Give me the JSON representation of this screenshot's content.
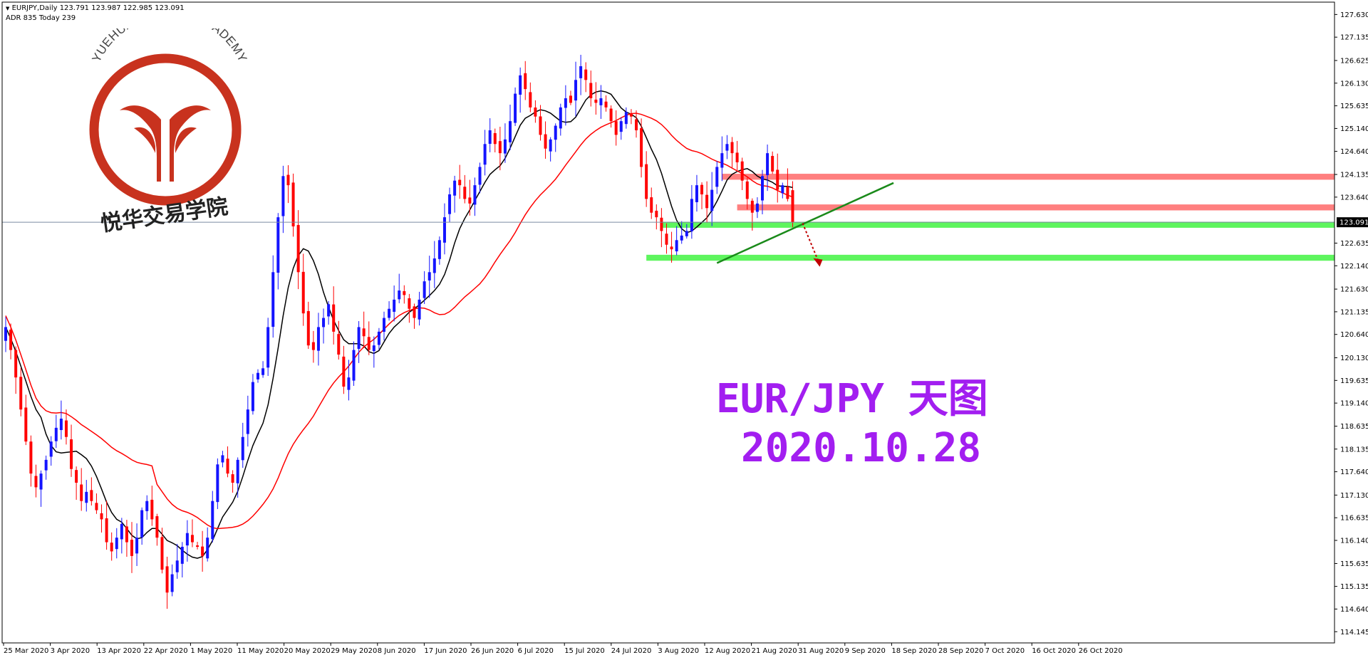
{
  "header": {
    "symbol_line": "EURJPY,Daily  123.791 123.987 122.985 123.091",
    "adr_line": "ADR 835  Today 239"
  },
  "logo": {
    "arc_text": "YUEHUA TRADING ACADEMY",
    "cn_text": "悦华交易学院",
    "color": "#c8321e"
  },
  "annotation": {
    "title": "EUR/JPY 天图",
    "date": "2020.10.28",
    "color": "#a21ef0"
  },
  "chart_data": {
    "type": "candlestick",
    "symbol": "EURJPY",
    "timeframe": "Daily",
    "ohlc_current": {
      "open": 123.791,
      "high": 123.987,
      "low": 122.985,
      "close": 123.091
    },
    "current_price_label": "123.091",
    "ylim": [
      113.9,
      127.9
    ],
    "y_ticks": [
      "127.630",
      "127.135",
      "126.625",
      "126.130",
      "125.635",
      "125.140",
      "124.640",
      "124.135",
      "123.640",
      "122.635",
      "122.140",
      "121.630",
      "121.135",
      "120.640",
      "120.130",
      "119.635",
      "119.140",
      "118.635",
      "118.135",
      "117.640",
      "117.130",
      "116.635",
      "116.140",
      "115.635",
      "115.135",
      "114.640",
      "114.145"
    ],
    "x_labels": [
      "25 Mar 2020",
      "3 Apr 2020",
      "13 Apr 2020",
      "22 Apr 2020",
      "1 May 2020",
      "11 May 2020",
      "20 May 2020",
      "29 May 2020",
      "8 Jun 2020",
      "17 Jun 2020",
      "26 Jun 2020",
      "6 Jul 2020",
      "15 Jul 2020",
      "24 Jul 2020",
      "3 Aug 2020",
      "12 Aug 2020",
      "21 Aug 2020",
      "31 Aug 2020",
      "9 Sep 2020",
      "18 Sep 2020",
      "28 Sep 2020",
      "7 Oct 2020",
      "16 Oct 2020",
      "26 Oct 2020"
    ],
    "up_color": "#1414ff",
    "down_color": "#ff0000",
    "closes": [
      120.8,
      120.3,
      119.7,
      119.0,
      118.3,
      117.6,
      117.3,
      117.6,
      117.9,
      118.3,
      118.6,
      118.8,
      118.4,
      117.7,
      117.4,
      117.0,
      117.2,
      117.0,
      116.8,
      116.6,
      116.1,
      115.9,
      116.2,
      116.5,
      116.1,
      115.8,
      116.2,
      116.8,
      117.0,
      116.6,
      116.2,
      115.5,
      115.0,
      115.4,
      115.7,
      116.0,
      116.3,
      116.1,
      116.0,
      115.8,
      116.2,
      117.0,
      117.8,
      118.0,
      117.6,
      117.4,
      117.9,
      118.4,
      119.0,
      119.6,
      119.8,
      119.9,
      120.8,
      122.0,
      123.2,
      124.1,
      123.9,
      123.0,
      122.0,
      121.1,
      120.4,
      120.3,
      120.8,
      121.0,
      121.3,
      120.7,
      120.2,
      119.5,
      119.7,
      120.3,
      120.8,
      120.6,
      120.3,
      120.4,
      120.7,
      121.0,
      121.2,
      121.4,
      121.6,
      121.5,
      121.2,
      121.0,
      121.4,
      121.8,
      122.0,
      122.3,
      122.7,
      123.2,
      123.7,
      124.0,
      123.9,
      123.6,
      123.5,
      123.9,
      124.3,
      124.8,
      125.1,
      124.8,
      124.6,
      124.9,
      125.3,
      125.9,
      126.3,
      126.0,
      125.6,
      125.4,
      125.0,
      124.7,
      124.9,
      125.2,
      125.6,
      125.8,
      125.7,
      126.2,
      126.5,
      126.2,
      125.8,
      125.7,
      125.8,
      125.6,
      125.3,
      125.0,
      125.3,
      125.5,
      125.4,
      125.1,
      124.3,
      123.6,
      123.3,
      123.2,
      122.9,
      122.6,
      122.5,
      122.7,
      122.8,
      122.9,
      123.6,
      123.9,
      123.7,
      123.4,
      123.8,
      124.3,
      124.6,
      124.8,
      124.6,
      124.4,
      124.0,
      123.6,
      123.3,
      123.5,
      124.1,
      124.6,
      124.2,
      123.8,
      123.9,
      123.6,
      123.091
    ],
    "series": [
      {
        "name": "",
        "color": "#000000",
        "type": "ma-fast"
      },
      {
        "name": "",
        "color": "#ff0000",
        "type": "ma-slow"
      }
    ],
    "zones": [
      {
        "kind": "resistance",
        "color": "#ff7f7f",
        "from": 124.02,
        "to": 124.15
      },
      {
        "kind": "resistance",
        "color": "#ff7f7f",
        "from": 123.35,
        "to": 123.48
      },
      {
        "kind": "support",
        "color": "#5ef55e",
        "from": 122.97,
        "to": 123.1
      },
      {
        "kind": "support",
        "color": "#5ef55e",
        "from": 122.25,
        "to": 122.38
      }
    ],
    "trendline": {
      "color": "#1a8a1a",
      "from": 122.2,
      "to": 123.95
    },
    "projection_arrow": {
      "color": "#c00000",
      "from": 123.07,
      "to": 122.15
    }
  }
}
